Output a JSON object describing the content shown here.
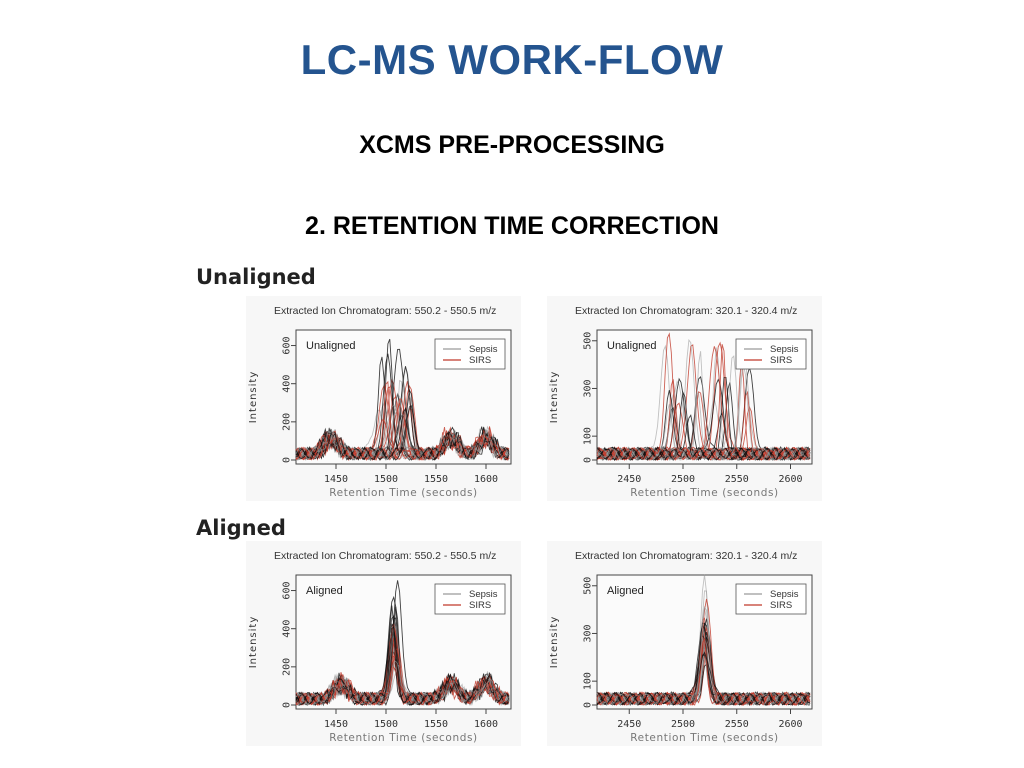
{
  "slide": {
    "title": "LC-MS WORK-FLOW",
    "subtitle": "XCMS PRE-PROCESSING",
    "step": "2. RETENTION TIME CORRECTION",
    "section_unaligned": "Unaligned",
    "section_aligned": "Aligned"
  },
  "colors": {
    "title": "#24548f",
    "sepsis": "#9a9a9a",
    "sirs": "#c0392b",
    "dark": "#111111"
  },
  "chart_data": [
    {
      "type": "line",
      "title": "Extracted Ion Chromatogram: 550.2 - 550.5 m/z",
      "inplot_label": "Unaligned",
      "xlabel": "Retention Time (seconds)",
      "ylabel": "Intensity",
      "xlim": [
        1410,
        1625
      ],
      "ylim": [
        0,
        650
      ],
      "xticks": [
        1450,
        1500,
        1550,
        1600
      ],
      "yticks": [
        0,
        200,
        400,
        600
      ],
      "legend": [
        "Sepsis",
        "SIRS"
      ],
      "legend_position": "top-right",
      "series": [
        {
          "name": "Sepsis",
          "peak_rt_range": [
            1492,
            1525
          ],
          "max_intensity": 640
        },
        {
          "name": "SIRS",
          "peak_rt_range": [
            1494,
            1522
          ],
          "max_intensity": 430
        }
      ],
      "minor_peaks": [
        1445,
        1565,
        1600
      ]
    },
    {
      "type": "line",
      "title": "Extracted Ion Chromatogram: 320.1 - 320.4 m/z",
      "inplot_label": "Unaligned",
      "xlabel": "Retention Time (seconds)",
      "ylabel": "Intensity",
      "xlim": [
        2420,
        2620
      ],
      "ylim": [
        0,
        520
      ],
      "xticks": [
        2450,
        2500,
        2550,
        2600
      ],
      "yticks": [
        0,
        100,
        300,
        500
      ],
      "legend": [
        "Sepsis",
        "SIRS"
      ],
      "legend_position": "top-right",
      "series": [
        {
          "name": "Sepsis",
          "peak_rt_range": [
            2480,
            2565
          ],
          "max_intensity": 360
        },
        {
          "name": "SIRS",
          "peak_rt_range": [
            2480,
            2560
          ],
          "max_intensity": 500
        }
      ],
      "minor_peaks": []
    },
    {
      "type": "line",
      "title": "Extracted Ion Chromatogram: 550.2 - 550.5 m/z",
      "inplot_label": "Aligned",
      "xlabel": "Retention Time (seconds)",
      "ylabel": "Intensity",
      "xlim": [
        1410,
        1625
      ],
      "ylim": [
        0,
        650
      ],
      "xticks": [
        1450,
        1500,
        1550,
        1600
      ],
      "yticks": [
        0,
        200,
        400,
        600
      ],
      "legend": [
        "Sepsis",
        "SIRS"
      ],
      "legend_position": "top-right",
      "series": [
        {
          "name": "Sepsis",
          "peak_rt_range": [
            1506,
            1512
          ],
          "max_intensity": 620
        },
        {
          "name": "SIRS",
          "peak_rt_range": [
            1506,
            1512
          ],
          "max_intensity": 420
        }
      ],
      "minor_peaks": [
        1455,
        1565,
        1600
      ]
    },
    {
      "type": "line",
      "title": "Extracted Ion Chromatogram: 320.1 - 320.4 m/z",
      "inplot_label": "Aligned",
      "xlabel": "Retention Time (seconds)",
      "ylabel": "Intensity",
      "xlim": [
        2420,
        2620
      ],
      "ylim": [
        0,
        520
      ],
      "xticks": [
        2450,
        2500,
        2550,
        2600
      ],
      "yticks": [
        0,
        100,
        300,
        500
      ],
      "legend": [
        "Sepsis",
        "SIRS"
      ],
      "legend_position": "top-right",
      "series": [
        {
          "name": "Sepsis",
          "peak_rt_range": [
            2518,
            2522
          ],
          "max_intensity": 350
        },
        {
          "name": "SIRS",
          "peak_rt_range": [
            2518,
            2522
          ],
          "max_intensity": 500
        }
      ],
      "minor_peaks": []
    }
  ]
}
